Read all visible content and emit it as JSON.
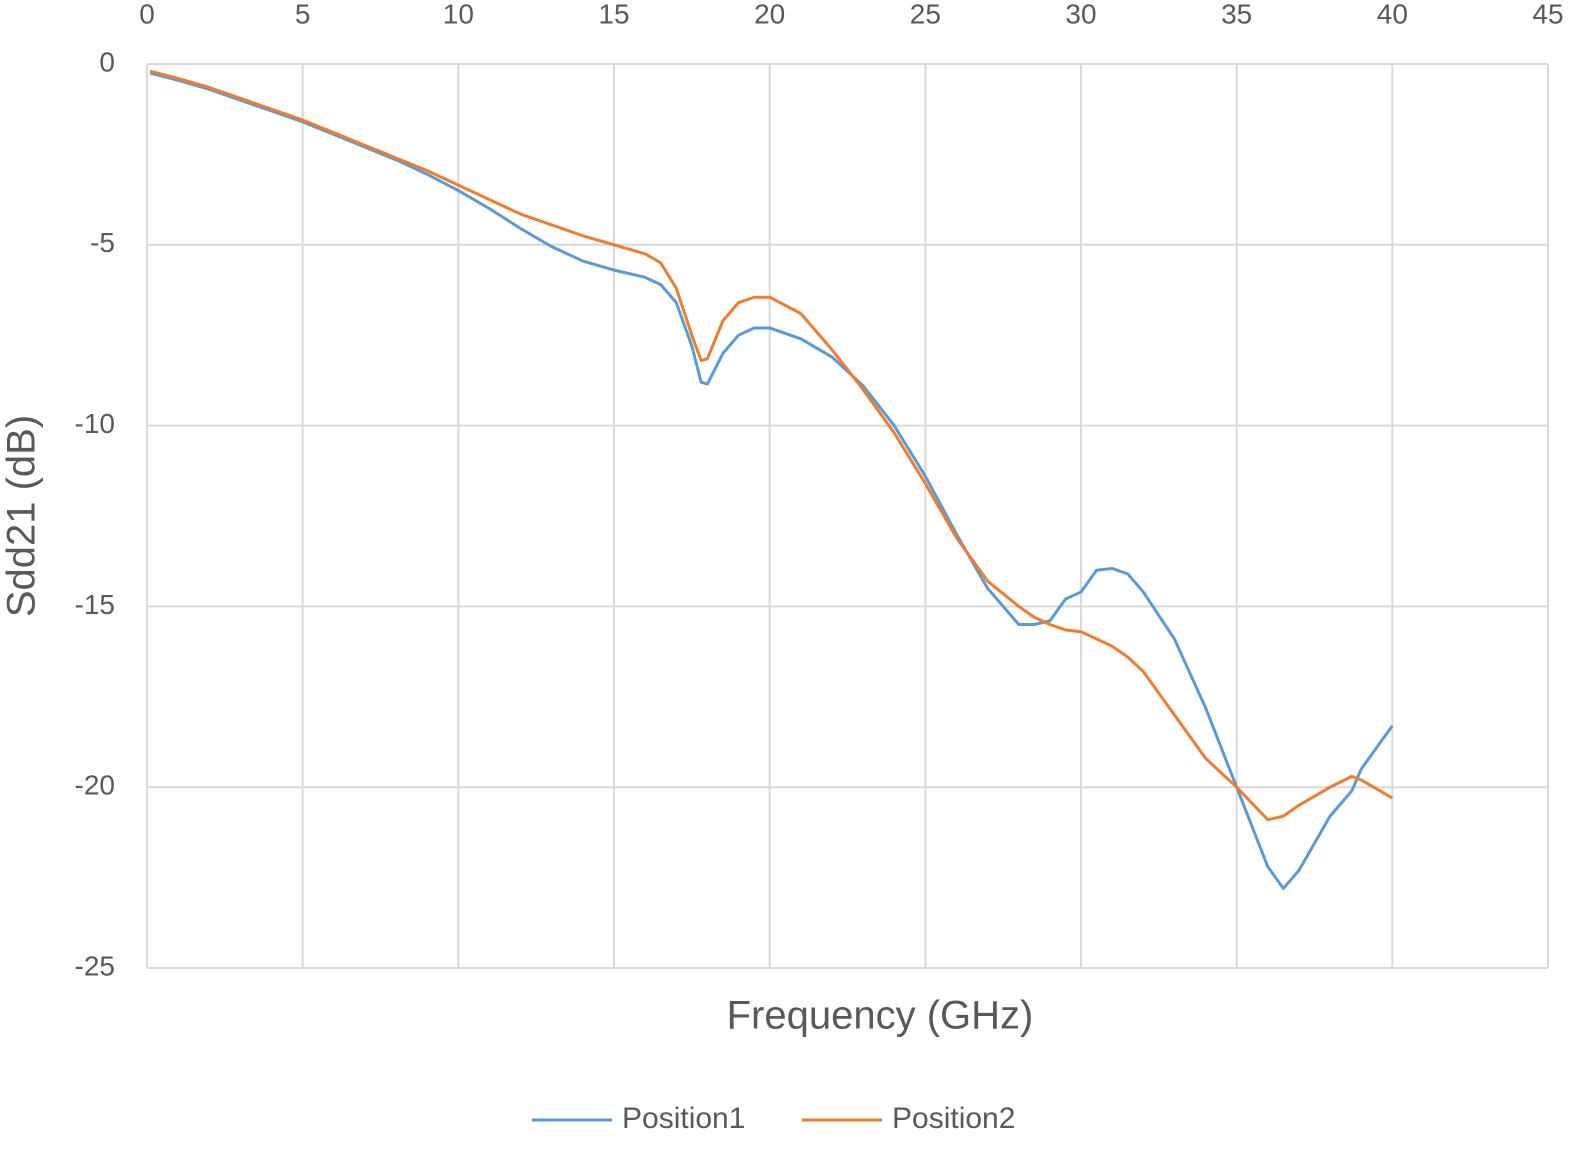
{
  "chart_data": {
    "type": "line",
    "x_label": "Frequency (GHz)",
    "y_label": "Sdd21 (dB)",
    "x": [
      0.1,
      1,
      2,
      3,
      4,
      5,
      6,
      7,
      8,
      9,
      10,
      11,
      12,
      13,
      14,
      15,
      16,
      16.5,
      17,
      17.5,
      17.8,
      18,
      18.5,
      19,
      19.5,
      20,
      21,
      22,
      23,
      24,
      25,
      26,
      27,
      28,
      28.5,
      29,
      29.5,
      30,
      30.5,
      31,
      31.5,
      32,
      33,
      34,
      35,
      36,
      36.5,
      37,
      38,
      38.7,
      39,
      40
    ],
    "series": [
      {
        "name": "Position1",
        "color": "#5b9bd5",
        "values": [
          -0.25,
          -0.45,
          -0.7,
          -1.0,
          -1.3,
          -1.6,
          -1.95,
          -2.3,
          -2.65,
          -3.05,
          -3.5,
          -4.0,
          -4.55,
          -5.05,
          -5.45,
          -5.7,
          -5.9,
          -6.1,
          -6.6,
          -7.8,
          -8.8,
          -8.85,
          -8.0,
          -7.5,
          -7.3,
          -7.3,
          -7.6,
          -8.1,
          -8.9,
          -10.0,
          -11.4,
          -13.0,
          -14.5,
          -15.5,
          -15.5,
          -15.4,
          -14.8,
          -14.6,
          -14.0,
          -13.95,
          -14.1,
          -14.6,
          -15.9,
          -17.8,
          -20.0,
          -22.2,
          -22.8,
          -22.3,
          -20.8,
          -20.1,
          -19.5,
          -18.3
        ]
      },
      {
        "name": "Position2",
        "color": "#ed7d31",
        "values": [
          -0.2,
          -0.4,
          -0.65,
          -0.95,
          -1.25,
          -1.55,
          -1.9,
          -2.25,
          -2.6,
          -2.95,
          -3.35,
          -3.75,
          -4.15,
          -4.45,
          -4.75,
          -5.0,
          -5.25,
          -5.5,
          -6.2,
          -7.5,
          -8.2,
          -8.15,
          -7.1,
          -6.6,
          -6.45,
          -6.45,
          -6.9,
          -7.9,
          -9.0,
          -10.2,
          -11.6,
          -13.1,
          -14.3,
          -15.0,
          -15.3,
          -15.5,
          -15.65,
          -15.7,
          -15.9,
          -16.1,
          -16.4,
          -16.8,
          -18.0,
          -19.2,
          -20.0,
          -20.9,
          -20.8,
          -20.5,
          -20.0,
          -19.7,
          -19.8,
          -20.3
        ]
      }
    ],
    "xlim": [
      0,
      45
    ],
    "xticks": [
      0,
      5,
      10,
      15,
      20,
      25,
      30,
      35,
      40,
      45
    ],
    "ylim": [
      -25,
      0
    ],
    "yticks": [
      0,
      -5,
      -10,
      -15,
      -20,
      -25
    ],
    "grid": true,
    "legend": "bottom"
  }
}
